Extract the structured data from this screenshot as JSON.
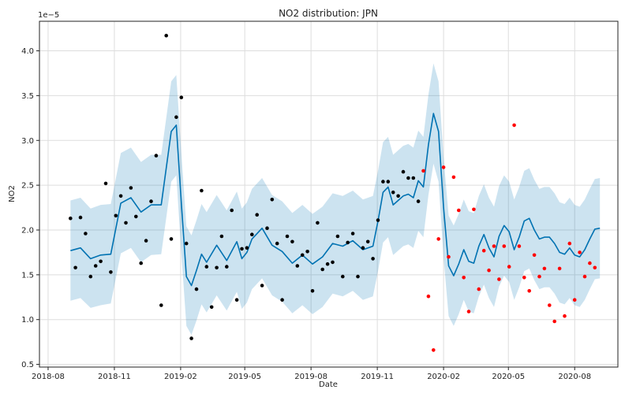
{
  "chart_data": {
    "type": "scatter",
    "title": "NO2 distribution: JPN",
    "xlabel": "Date",
    "ylabel": "NO2",
    "y_exponent_label": "1e−5",
    "x_ticks": [
      "2018-08-01",
      "2018-11-01",
      "2019-02-01",
      "2019-05-01",
      "2019-08-01",
      "2019-11-01",
      "2020-02-01",
      "2020-05-01",
      "2020-08-01"
    ],
    "x_tick_labels": [
      "2018-08",
      "2018-11",
      "2019-02",
      "2019-05",
      "2019-08",
      "2019-11",
      "2020-02",
      "2020-05",
      "2020-08"
    ],
    "y_ticks": [
      0.5,
      1.0,
      1.5,
      2.0,
      2.5,
      3.0,
      3.5,
      4.0
    ],
    "y_tick_labels": [
      "0.5",
      "1.0",
      "1.5",
      "2.0",
      "2.5",
      "3.0",
      "3.5",
      "4.0"
    ],
    "xlim": [
      "2018-07-20",
      "2020-09-30"
    ],
    "ylim": [
      0.47,
      4.33
    ],
    "grid": true,
    "colors": {
      "observed": "#000000",
      "holdout": "#ff0000",
      "forecast": "#0072b2",
      "interval": "#0072b2"
    },
    "series": [
      {
        "role": "observed",
        "x": [
          "2018-09-01",
          "2018-09-08",
          "2018-09-15",
          "2018-09-22",
          "2018-09-29",
          "2018-10-06",
          "2018-10-13",
          "2018-10-20",
          "2018-10-27",
          "2018-11-03",
          "2018-11-10",
          "2018-11-17",
          "2018-11-24",
          "2018-12-01",
          "2018-12-08",
          "2018-12-15",
          "2018-12-22",
          "2018-12-29",
          "2019-01-05",
          "2019-01-12",
          "2019-01-19",
          "2019-01-26",
          "2019-02-02",
          "2019-02-09",
          "2019-02-16",
          "2019-02-23",
          "2019-03-02",
          "2019-03-09",
          "2019-03-16",
          "2019-03-23",
          "2019-03-30",
          "2019-04-06",
          "2019-04-13",
          "2019-04-20",
          "2019-04-27",
          "2019-05-04",
          "2019-05-11",
          "2019-05-18",
          "2019-05-25",
          "2019-06-01",
          "2019-06-08",
          "2019-06-15",
          "2019-06-22",
          "2019-06-29",
          "2019-07-06",
          "2019-07-13",
          "2019-07-20",
          "2019-07-27",
          "2019-08-03",
          "2019-08-10",
          "2019-08-17",
          "2019-08-24",
          "2019-08-31",
          "2019-09-07",
          "2019-09-14",
          "2019-09-21",
          "2019-09-28",
          "2019-10-05",
          "2019-10-12",
          "2019-10-19",
          "2019-10-26",
          "2019-11-02",
          "2019-11-09",
          "2019-11-16",
          "2019-11-23",
          "2019-11-30",
          "2019-12-07",
          "2019-12-14",
          "2019-12-21",
          "2019-12-28"
        ],
        "y": [
          2.13,
          1.58,
          2.14,
          1.96,
          1.48,
          1.6,
          1.65,
          2.52,
          1.53,
          2.16,
          2.38,
          2.08,
          2.47,
          2.15,
          1.63,
          1.88,
          2.32,
          2.83,
          1.16,
          4.17,
          1.9,
          3.26,
          3.48,
          1.85,
          0.79,
          1.34,
          2.44,
          1.59,
          1.14,
          1.58,
          1.93,
          1.59,
          2.22,
          1.22,
          1.79,
          1.8,
          1.95,
          2.17,
          1.38,
          2.02,
          2.34,
          1.85,
          1.22,
          1.93,
          1.87,
          1.6,
          1.72,
          1.76,
          1.32,
          2.08,
          1.56,
          1.62,
          1.64,
          1.93,
          1.48,
          1.86,
          1.96,
          1.48,
          1.8,
          1.87,
          1.68,
          2.11,
          2.54,
          2.54,
          2.42,
          2.38,
          2.65,
          2.58,
          2.58,
          2.32
        ]
      },
      {
        "role": "holdout",
        "x": [
          "2020-01-04",
          "2020-01-11",
          "2020-01-18",
          "2020-01-25",
          "2020-02-01",
          "2020-02-08",
          "2020-02-15",
          "2020-02-22",
          "2020-02-29",
          "2020-03-07",
          "2020-03-14",
          "2020-03-21",
          "2020-03-28",
          "2020-04-04",
          "2020-04-11",
          "2020-04-18",
          "2020-04-25",
          "2020-05-02",
          "2020-05-09",
          "2020-05-16",
          "2020-05-23",
          "2020-05-30",
          "2020-06-06",
          "2020-06-13",
          "2020-06-20",
          "2020-06-27",
          "2020-07-04",
          "2020-07-11",
          "2020-07-18",
          "2020-07-25",
          "2020-08-01",
          "2020-08-08",
          "2020-08-15",
          "2020-08-22",
          "2020-08-29"
        ],
        "y": [
          2.66,
          1.26,
          0.66,
          1.9,
          2.7,
          1.7,
          2.59,
          2.22,
          1.47,
          1.09,
          2.23,
          1.34,
          1.77,
          1.55,
          1.82,
          1.45,
          1.82,
          1.59,
          3.17,
          1.82,
          1.47,
          1.32,
          1.72,
          1.48,
          1.57,
          1.16,
          0.98,
          1.57,
          1.04,
          1.85,
          1.22,
          1.75,
          1.48,
          1.63,
          1.58
        ]
      }
    ],
    "forecast": {
      "x": [
        "2018-09-01",
        "2018-09-15",
        "2018-09-29",
        "2018-10-13",
        "2018-10-27",
        "2018-11-10",
        "2018-11-24",
        "2018-12-08",
        "2018-12-22",
        "2019-01-05",
        "2019-01-19",
        "2019-01-26",
        "2019-02-02",
        "2019-02-09",
        "2019-02-16",
        "2019-02-23",
        "2019-03-02",
        "2019-03-09",
        "2019-03-23",
        "2019-04-06",
        "2019-04-20",
        "2019-04-27",
        "2019-05-04",
        "2019-05-11",
        "2019-05-25",
        "2019-06-08",
        "2019-06-22",
        "2019-07-06",
        "2019-07-20",
        "2019-08-03",
        "2019-08-17",
        "2019-08-31",
        "2019-09-14",
        "2019-09-28",
        "2019-10-12",
        "2019-10-26",
        "2019-11-02",
        "2019-11-09",
        "2019-11-16",
        "2019-11-23",
        "2019-12-07",
        "2019-12-14",
        "2019-12-21",
        "2019-12-28",
        "2020-01-04",
        "2020-01-11",
        "2020-01-18",
        "2020-01-25",
        "2020-02-01",
        "2020-02-08",
        "2020-02-15",
        "2020-02-22",
        "2020-02-29",
        "2020-03-07",
        "2020-03-14",
        "2020-03-21",
        "2020-03-28",
        "2020-04-04",
        "2020-04-11",
        "2020-04-18",
        "2020-04-25",
        "2020-05-02",
        "2020-05-09",
        "2020-05-16",
        "2020-05-23",
        "2020-05-30",
        "2020-06-06",
        "2020-06-13",
        "2020-06-20",
        "2020-06-27",
        "2020-07-04",
        "2020-07-11",
        "2020-07-18",
        "2020-07-25",
        "2020-08-01",
        "2020-08-08",
        "2020-08-15",
        "2020-08-22",
        "2020-08-29",
        "2020-09-05"
      ],
      "yhat": [
        1.77,
        1.8,
        1.68,
        1.72,
        1.73,
        2.3,
        2.36,
        2.2,
        2.28,
        2.28,
        3.1,
        3.17,
        2.3,
        1.48,
        1.38,
        1.55,
        1.73,
        1.64,
        1.83,
        1.66,
        1.87,
        1.68,
        1.75,
        1.9,
        2.02,
        1.83,
        1.76,
        1.63,
        1.72,
        1.62,
        1.7,
        1.85,
        1.82,
        1.88,
        1.78,
        1.82,
        2.1,
        2.42,
        2.48,
        2.28,
        2.38,
        2.4,
        2.36,
        2.55,
        2.48,
        2.95,
        3.3,
        3.1,
        2.25,
        1.6,
        1.49,
        1.62,
        1.78,
        1.65,
        1.63,
        1.82,
        1.95,
        1.8,
        1.7,
        1.93,
        2.05,
        1.98,
        1.78,
        1.92,
        2.1,
        2.13,
        2.0,
        1.9,
        1.92,
        1.92,
        1.85,
        1.75,
        1.73,
        1.8,
        1.72,
        1.7,
        1.78,
        1.9,
        2.01,
        2.02
      ],
      "lower": [
        1.21,
        1.24,
        1.13,
        1.16,
        1.18,
        1.74,
        1.8,
        1.64,
        1.72,
        1.73,
        2.54,
        2.61,
        1.74,
        0.93,
        0.83,
        0.99,
        1.17,
        1.08,
        1.27,
        1.1,
        1.31,
        1.12,
        1.19,
        1.34,
        1.46,
        1.27,
        1.2,
        1.07,
        1.16,
        1.06,
        1.14,
        1.29,
        1.26,
        1.32,
        1.22,
        1.26,
        1.54,
        1.86,
        1.92,
        1.72,
        1.82,
        1.84,
        1.8,
        1.99,
        1.92,
        2.39,
        2.74,
        2.54,
        1.69,
        1.04,
        0.93,
        1.06,
        1.22,
        1.09,
        1.07,
        1.26,
        1.39,
        1.24,
        1.14,
        1.37,
        1.49,
        1.42,
        1.22,
        1.36,
        1.54,
        1.57,
        1.44,
        1.34,
        1.36,
        1.36,
        1.29,
        1.19,
        1.17,
        1.24,
        1.16,
        1.14,
        1.22,
        1.34,
        1.45,
        1.46
      ],
      "upper": [
        2.33,
        2.36,
        2.24,
        2.28,
        2.29,
        2.86,
        2.92,
        2.76,
        2.84,
        2.84,
        3.66,
        3.73,
        2.86,
        2.04,
        1.94,
        2.11,
        2.29,
        2.2,
        2.39,
        2.22,
        2.43,
        2.24,
        2.31,
        2.46,
        2.58,
        2.39,
        2.32,
        2.19,
        2.28,
        2.18,
        2.26,
        2.41,
        2.38,
        2.44,
        2.34,
        2.38,
        2.66,
        2.98,
        3.04,
        2.84,
        2.94,
        2.96,
        2.92,
        3.11,
        3.04,
        3.51,
        3.86,
        3.66,
        2.81,
        2.16,
        2.05,
        2.18,
        2.34,
        2.21,
        2.19,
        2.38,
        2.51,
        2.36,
        2.26,
        2.49,
        2.61,
        2.54,
        2.34,
        2.48,
        2.66,
        2.69,
        2.56,
        2.46,
        2.48,
        2.48,
        2.41,
        2.31,
        2.29,
        2.36,
        2.28,
        2.26,
        2.34,
        2.46,
        2.57,
        2.58
      ]
    }
  }
}
